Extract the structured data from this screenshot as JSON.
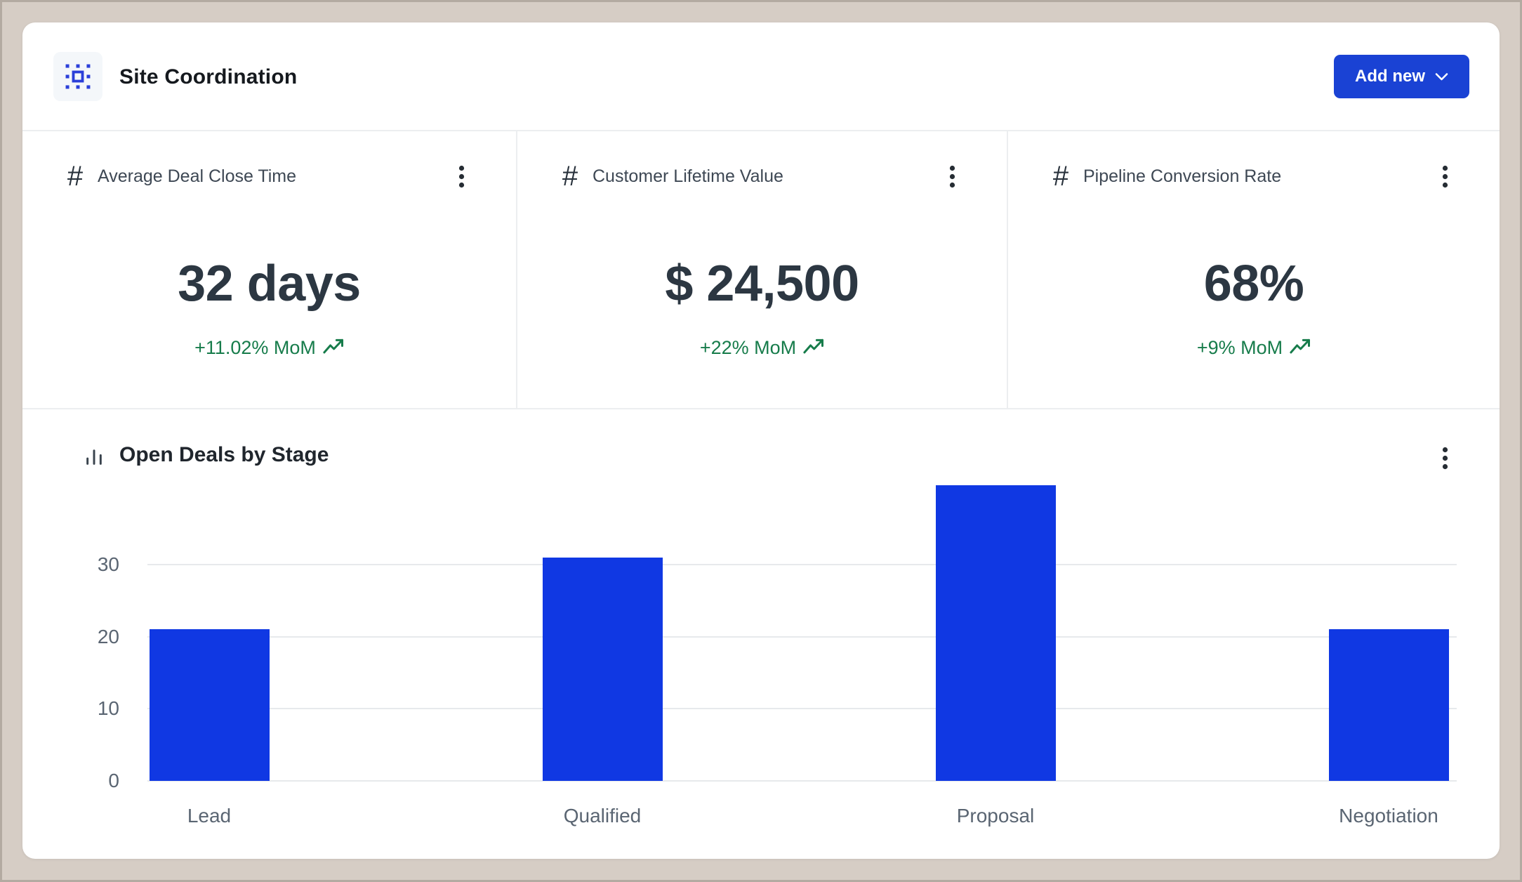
{
  "header": {
    "title": "Site Coordination",
    "add_new_label": "Add new"
  },
  "icons": {
    "hash_glyph": "#",
    "logo": "selection-frame-icon",
    "menu": "kebab-menu-icon",
    "trend": "trending-up-icon",
    "chart": "bar-chart-icon",
    "chevron": "chevron-down-icon"
  },
  "colors": {
    "accent_blue": "#1a42d4",
    "bar_blue": "#1038e3",
    "positive_green": "#177c4b",
    "panel_white": "#ffffff",
    "desktop_tan": "#d6cdc5",
    "grid_gray": "#e7e9ec",
    "value_slate": "#2c3742"
  },
  "kpis": [
    {
      "title": "Average Deal Close Time",
      "value": "32 days",
      "delta": "+11.02% MoM"
    },
    {
      "title": "Customer Lifetime Value",
      "value": "$ 24,500",
      "delta": "+22% MoM"
    },
    {
      "title": "Pipeline Conversion Rate",
      "value": "68%",
      "delta": "+9% MoM"
    }
  ],
  "chart_data": {
    "type": "bar",
    "title": "Open Deals by Stage",
    "categories": [
      "Lead",
      "Qualified",
      "Proposal",
      "Negotiation"
    ],
    "values": [
      21,
      31,
      41,
      21
    ],
    "yticks": [
      0,
      10,
      20,
      30
    ],
    "ylim": [
      0,
      44
    ],
    "xlabel": "",
    "ylabel": "",
    "grid": true,
    "legend": "none",
    "bar_color": "#1038e3"
  }
}
